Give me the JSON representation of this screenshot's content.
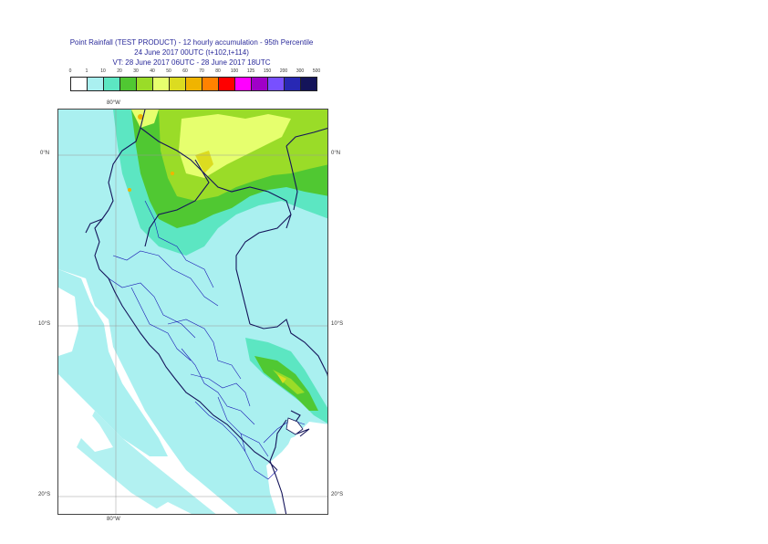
{
  "title": {
    "line1": "Point Rainfall (TEST PRODUCT) - 12 hourly accumulation - 95th Percentile",
    "line2": "24 June 2017 00UTC (t+102,t+114)",
    "line3": "VT: 28 June 2017 06UTC - 28 June 2017 18UTC"
  },
  "legend": {
    "thresholds": [
      "0",
      "1",
      "10",
      "20",
      "30",
      "40",
      "50",
      "60",
      "70",
      "80",
      "100",
      "125",
      "150",
      "200",
      "300",
      "500"
    ],
    "colors": [
      "#ffffff",
      "#aaf0f0",
      "#5ce6c2",
      "#50c832",
      "#9adc28",
      "#e6ff6e",
      "#dcdc20",
      "#f0b400",
      "#ff8200",
      "#ff0000",
      "#ff00ff",
      "#a000c8",
      "#7850ff",
      "#2828b4",
      "#14145a"
    ]
  },
  "map": {
    "labels": {
      "lon_top": "80°W",
      "lon_bottom": "80°W",
      "lat_0": "0°N",
      "lat_0_right": "0°N",
      "lat_10": "10°S",
      "lat_10_right": "10°S",
      "lat_20": "20°S",
      "lat_20_right": "20°S"
    }
  }
}
